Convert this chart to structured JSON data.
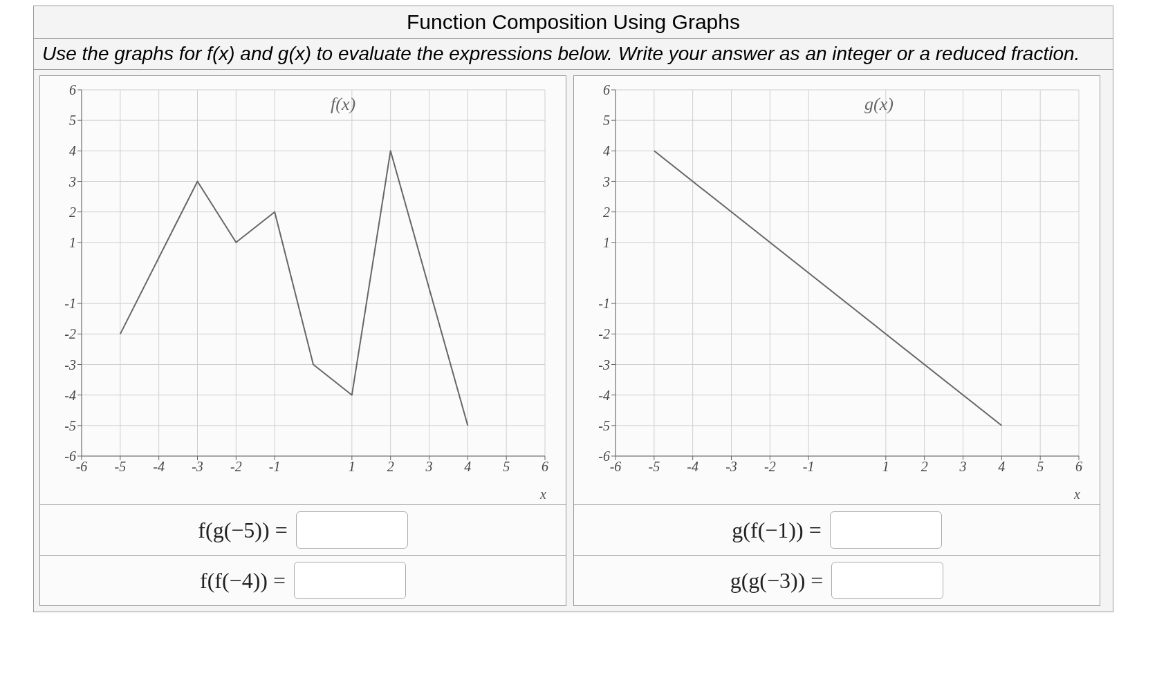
{
  "chart_data": [
    {
      "type": "line",
      "title": "Function Composition Using Graphs",
      "subtitle": "Use the graphs for f(x) and g(x) to evaluate the expressions below. Write your answer as an integer or a reduced fraction.",
      "xlabel": "x",
      "xlim": [
        -6,
        6
      ],
      "ylim": [
        -6,
        6
      ],
      "xticks": [
        -6,
        -5,
        -4,
        -3,
        -2,
        -1,
        1,
        2,
        3,
        4,
        5,
        6
      ],
      "yticks": [
        -6,
        -5,
        -4,
        -3,
        -2,
        -1,
        1,
        2,
        3,
        4,
        5,
        6
      ],
      "grid": true,
      "marker": "none",
      "line_style": "solid",
      "series": [
        {
          "name": "f(x)",
          "color": "#666666",
          "x": [
            -5,
            -3,
            -2,
            -1,
            0,
            1,
            2,
            4
          ],
          "values": [
            -2,
            3,
            1,
            2,
            -3,
            -4,
            4,
            -5
          ]
        }
      ],
      "annotations": [
        "f(g(−5)) =",
        "f(f(−4)) ="
      ]
    },
    {
      "type": "line",
      "xlabel": "x",
      "xlim": [
        -6,
        6
      ],
      "ylim": [
        -6,
        6
      ],
      "xticks": [
        -6,
        -5,
        -4,
        -3,
        -2,
        -1,
        1,
        2,
        3,
        4,
        5,
        6
      ],
      "yticks": [
        -6,
        -5,
        -4,
        -3,
        -2,
        -1,
        1,
        2,
        3,
        4,
        5,
        6
      ],
      "grid": true,
      "marker": "none",
      "line_style": "solid",
      "series": [
        {
          "name": "g(x)",
          "color": "#666666",
          "x": [
            -5,
            4
          ],
          "values": [
            4,
            -5
          ]
        }
      ],
      "annotations": [
        "g(f(−1)) =",
        "g(g(−3)) ="
      ]
    }
  ]
}
